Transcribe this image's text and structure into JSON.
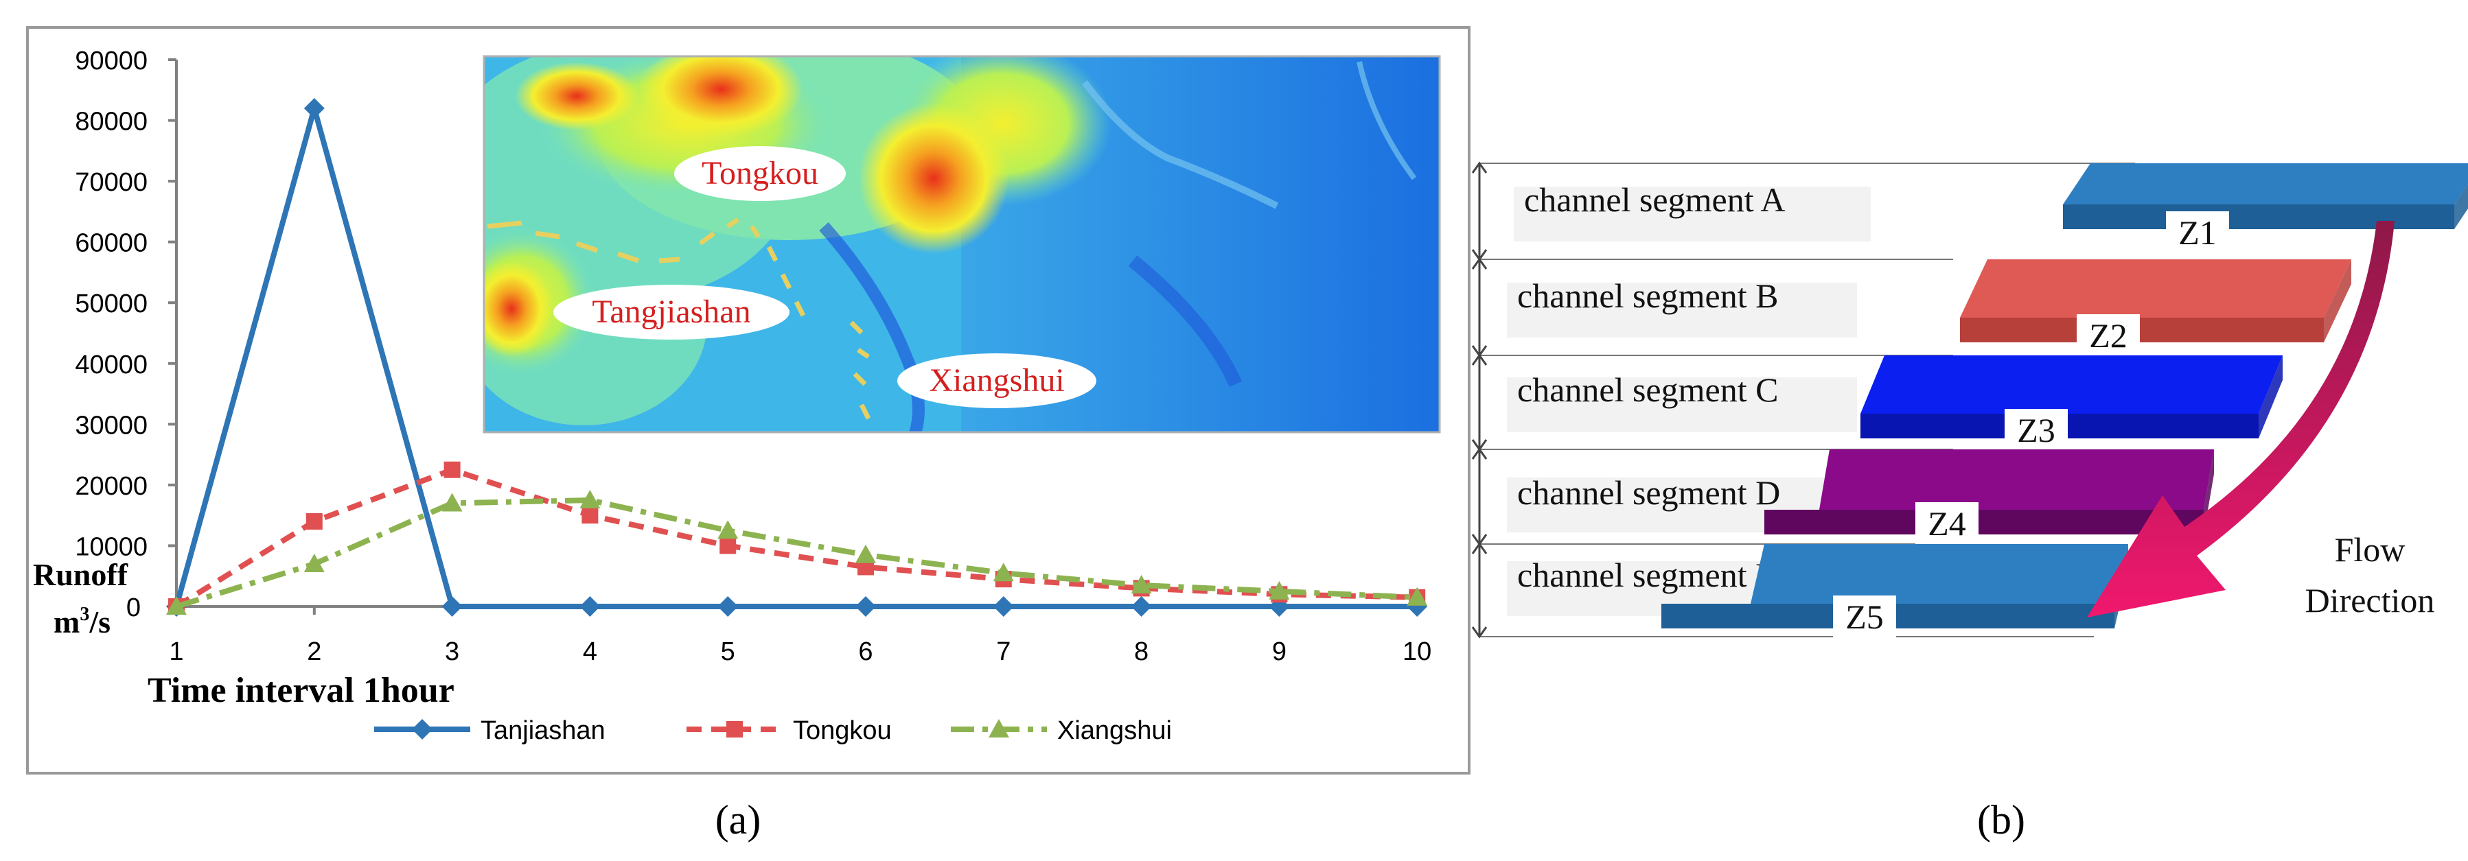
{
  "panel_a": {
    "caption": "(a)",
    "ylabel_line1": "Runoff",
    "ylabel_line2_base": "m",
    "ylabel_line2_sup": "3",
    "ylabel_line2_tail": "/s",
    "xlabel": "Time interval 1hour",
    "map": {
      "labels": [
        "Tongkou",
        "Tangjiashan",
        "Xiangshui"
      ],
      "label_color": "#d41f1f"
    }
  },
  "chart_data": {
    "type": "line",
    "x": [
      1,
      2,
      3,
      4,
      5,
      6,
      7,
      8,
      9,
      10
    ],
    "ylim": [
      0,
      90000
    ],
    "yticks": [
      0,
      10000,
      20000,
      30000,
      40000,
      50000,
      60000,
      70000,
      80000,
      90000
    ],
    "xlabel": "Time interval 1hour",
    "ylabel": "Runoff m3/s",
    "legend_position": "bottom",
    "series": [
      {
        "name": "Tanjiashan",
        "color": "#2e75b6",
        "marker": "diamond",
        "dash": "solid",
        "values": [
          0,
          82000,
          0,
          0,
          0,
          0,
          0,
          0,
          0,
          0
        ]
      },
      {
        "name": "Tongkou",
        "color": "#e05050",
        "marker": "square",
        "dash": "dashed",
        "values": [
          0,
          14000,
          22500,
          15000,
          10000,
          6500,
          4500,
          3000,
          2000,
          1500
        ]
      },
      {
        "name": "Xiangshui",
        "color": "#8db350",
        "marker": "triangle",
        "dash": "dashdot",
        "values": [
          0,
          7000,
          17000,
          17500,
          12500,
          8500,
          5500,
          3500,
          2500,
          1500
        ]
      }
    ]
  },
  "panel_b": {
    "caption": "(b)",
    "segments": [
      {
        "label": "channel segment A",
        "zone": "Z1",
        "color": "#2e7fc2",
        "dark": "#1d5f96"
      },
      {
        "label": "channel segment B",
        "zone": "Z2",
        "color": "#e05a55",
        "dark": "#b8403b"
      },
      {
        "label": "channel segment C",
        "zone": "Z3",
        "color": "#0a1ff0",
        "dark": "#0915b0"
      },
      {
        "label": "channel segment D",
        "zone": "Z4",
        "color": "#8a0a8a",
        "dark": "#5f065f"
      },
      {
        "label": "channel segment E",
        "zone": "Z5",
        "color": "#2e7fc2",
        "dark": "#1d5f96"
      }
    ],
    "flow_line1": "Flow",
    "flow_line2": "Direction",
    "arrow_color": "#e8106a"
  }
}
